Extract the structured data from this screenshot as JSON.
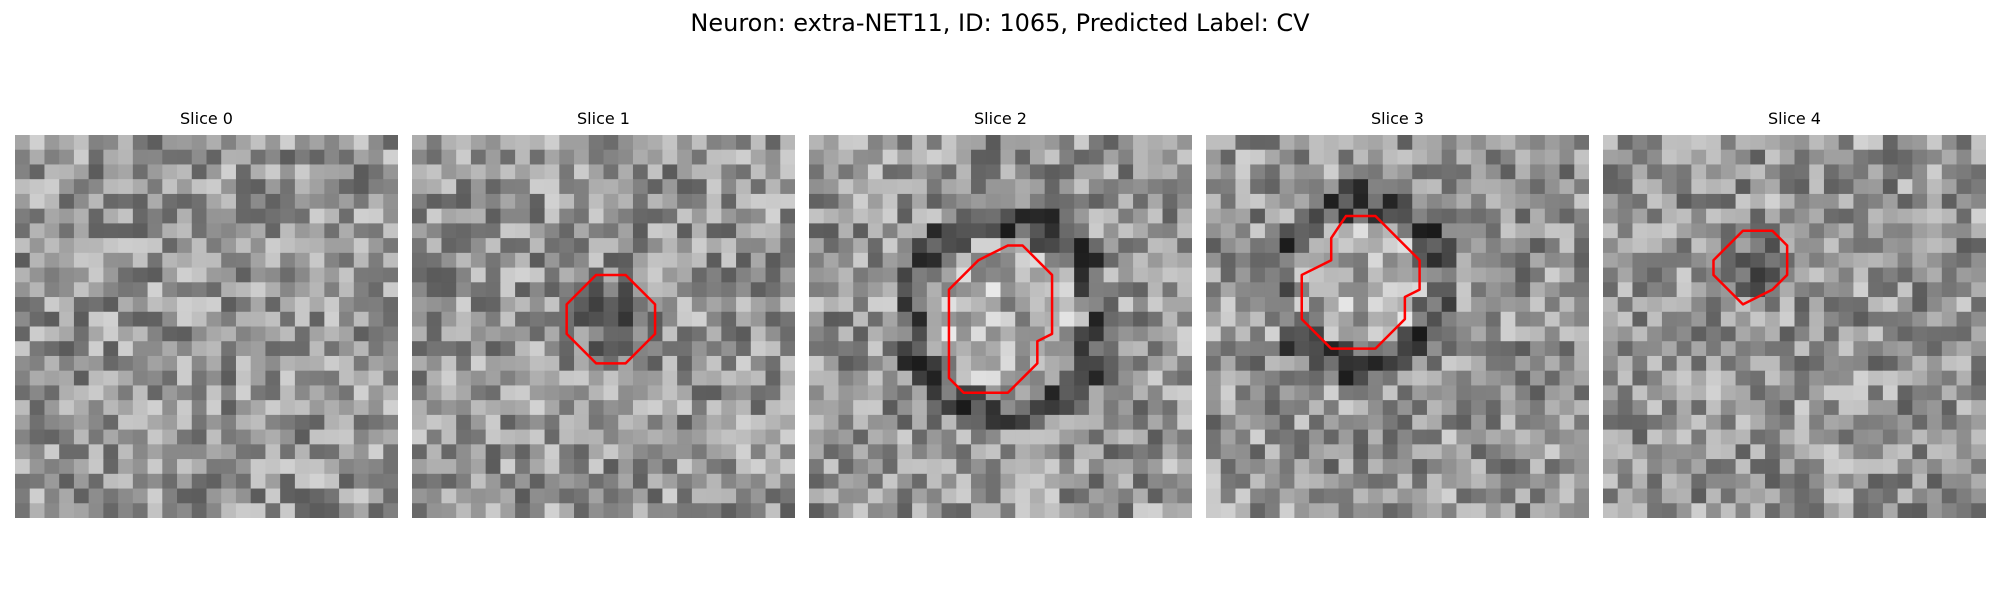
{
  "figure": {
    "title": "Neuron: extra-NET11, ID: 1065, Predicted Label: CV"
  },
  "panels": [
    {
      "title": "Slice 0",
      "has_outline": false,
      "outline": [],
      "dark_center": false
    },
    {
      "title": "Slice 1",
      "has_outline": true,
      "outline": [
        [
          11.5,
          10.5
        ],
        [
          12.5,
          9.5
        ],
        [
          14.5,
          9.5
        ],
        [
          15.5,
          10.5
        ],
        [
          16.5,
          11.5
        ],
        [
          16.5,
          13.5
        ],
        [
          15.5,
          14.5
        ],
        [
          14.5,
          15.5
        ],
        [
          12.5,
          15.5
        ],
        [
          11.5,
          14.5
        ],
        [
          10.5,
          13.5
        ],
        [
          10.5,
          11.5
        ]
      ],
      "dark_center": true
    },
    {
      "title": "Slice 2",
      "has_outline": true,
      "outline": [
        [
          9.5,
          10.5
        ],
        [
          11.5,
          8.5
        ],
        [
          13.5,
          7.5
        ],
        [
          14.5,
          7.5
        ],
        [
          15.5,
          8.5
        ],
        [
          16.5,
          9.5
        ],
        [
          16.5,
          13.5
        ],
        [
          15.5,
          14
        ],
        [
          15.5,
          15.5
        ],
        [
          14.5,
          16.5
        ],
        [
          13.5,
          17.5
        ],
        [
          10.5,
          17.5
        ],
        [
          9.5,
          16.5
        ],
        [
          9.5,
          10.5
        ]
      ],
      "dark_center": false
    },
    {
      "title": "Slice 3",
      "has_outline": true,
      "outline": [
        [
          8.5,
          7
        ],
        [
          9.5,
          5.5
        ],
        [
          11.5,
          5.5
        ],
        [
          13.5,
          7.5
        ],
        [
          14.5,
          8.5
        ],
        [
          14.5,
          10.5
        ],
        [
          13.5,
          11
        ],
        [
          13.5,
          12.5
        ],
        [
          12.5,
          13.5
        ],
        [
          11.5,
          14.5
        ],
        [
          8.5,
          14.5
        ],
        [
          7.5,
          13.5
        ],
        [
          6.5,
          12.5
        ],
        [
          6.5,
          9.5
        ],
        [
          7.5,
          9
        ],
        [
          8.5,
          8.5
        ],
        [
          8.5,
          7
        ]
      ],
      "dark_center": false
    },
    {
      "title": "Slice 4",
      "has_outline": true,
      "outline": [
        [
          8.5,
          7.5
        ],
        [
          9.5,
          6.5
        ],
        [
          11.5,
          6.5
        ],
        [
          12.5,
          7.5
        ],
        [
          12.5,
          9.5
        ],
        [
          11.5,
          10.5
        ],
        [
          9.5,
          11.5
        ],
        [
          8.5,
          10.5
        ],
        [
          7.5,
          9.5
        ],
        [
          7.5,
          8.5
        ]
      ],
      "dark_center": true
    }
  ],
  "colors": {
    "outline": "#ff0000",
    "background": "#ffffff"
  }
}
